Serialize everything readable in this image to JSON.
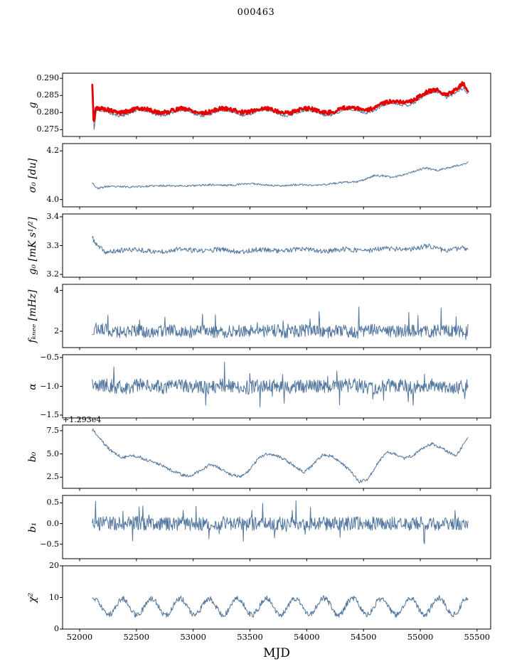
{
  "chart_data": {
    "type": "line",
    "title": "000463",
    "xlabel": "MJD",
    "xlim": [
      51850,
      55620
    ],
    "xticks": [
      52000,
      52500,
      53000,
      53500,
      54000,
      54500,
      55000,
      55500
    ],
    "xticklabels": [
      "52000",
      "52500",
      "53000",
      "53500",
      "54000",
      "54500",
      "55000",
      "55500"
    ],
    "legend": "none",
    "grid": false,
    "panels": [
      {
        "name": "g",
        "ylabel": "g",
        "ylim": [
          0.273,
          0.2915
        ],
        "yticks": [
          0.275,
          0.28,
          0.285,
          0.29
        ],
        "yticklabels": [
          "0.275",
          "0.280",
          "0.285",
          "0.290"
        ],
        "series": [
          {
            "name": "g-blue-thin",
            "color": "#53779e",
            "lw": 1.0,
            "x0": 52112,
            "x1": 55420,
            "n": 650,
            "seed": 11,
            "noise": 0.00045,
            "osc": {
              "period": 365,
              "amp": 0.0008,
              "phase": 0.5
            },
            "trend": [
              [
                52112,
                0.2868
              ],
              [
                52128,
                0.2738
              ],
              [
                52145,
                0.2798
              ],
              [
                52300,
                0.2799
              ],
              [
                52700,
                0.28
              ],
              [
                53100,
                0.2799
              ],
              [
                53500,
                0.2801
              ],
              [
                53900,
                0.2799
              ],
              [
                54300,
                0.2801
              ],
              [
                54500,
                0.2806
              ],
              [
                54700,
                0.2818
              ],
              [
                54900,
                0.283
              ],
              [
                55050,
                0.2848
              ],
              [
                55150,
                0.2856
              ],
              [
                55230,
                0.285
              ],
              [
                55320,
                0.2868
              ],
              [
                55380,
                0.287
              ],
              [
                55420,
                0.2848
              ]
            ]
          },
          {
            "name": "g-red-thick",
            "color": "#e60000",
            "lw": 2.8,
            "x0": 52112,
            "x1": 55420,
            "n": 650,
            "seed": 5,
            "noise": 0.0006,
            "osc": {
              "period": 365,
              "amp": 0.0006,
              "phase": 0.5
            },
            "trend": [
              [
                52112,
                0.2876
              ],
              [
                52124,
                0.276
              ],
              [
                52140,
                0.2806
              ],
              [
                52300,
                0.2806
              ],
              [
                52700,
                0.2806
              ],
              [
                53100,
                0.2805
              ],
              [
                53500,
                0.2807
              ],
              [
                53900,
                0.2805
              ],
              [
                54300,
                0.2807
              ],
              [
                54500,
                0.2812
              ],
              [
                54700,
                0.2824
              ],
              [
                54900,
                0.2838
              ],
              [
                55050,
                0.2854
              ],
              [
                55150,
                0.2862
              ],
              [
                55230,
                0.2856
              ],
              [
                55320,
                0.2874
              ],
              [
                55370,
                0.2886
              ],
              [
                55400,
                0.2872
              ],
              [
                55420,
                0.2862
              ]
            ]
          }
        ]
      },
      {
        "name": "sigma0",
        "ylabel": "σ₀ [du]",
        "ylim": [
          3.97,
          4.23
        ],
        "yticks": [
          4.0,
          4.2
        ],
        "yticklabels": [
          "4.0",
          "4.2"
        ],
        "series": [
          {
            "name": "sigma0",
            "color": "#53779e",
            "lw": 1.0,
            "x0": 52112,
            "x1": 55420,
            "n": 600,
            "seed": 23,
            "noise": 0.004,
            "osc": {
              "period": 365,
              "amp": 0.002,
              "phase": 2.0
            },
            "trend": [
              [
                52112,
                4.07
              ],
              [
                52150,
                4.045
              ],
              [
                52250,
                4.056
              ],
              [
                52450,
                4.05
              ],
              [
                52650,
                4.058
              ],
              [
                52850,
                4.055
              ],
              [
                53050,
                4.06
              ],
              [
                53250,
                4.058
              ],
              [
                53450,
                4.065
              ],
              [
                53650,
                4.06
              ],
              [
                53850,
                4.058
              ],
              [
                54050,
                4.06
              ],
              [
                54250,
                4.065
              ],
              [
                54450,
                4.075
              ],
              [
                54600,
                4.098
              ],
              [
                54750,
                4.092
              ],
              [
                54900,
                4.11
              ],
              [
                55050,
                4.128
              ],
              [
                55150,
                4.122
              ],
              [
                55250,
                4.132
              ],
              [
                55350,
                4.14
              ],
              [
                55420,
                4.15
              ]
            ]
          }
        ]
      },
      {
        "name": "g0",
        "ylabel": "g₀ [mK s¹/²]",
        "ylim": [
          3.19,
          3.41
        ],
        "yticks": [
          3.2,
          3.3,
          3.4
        ],
        "yticklabels": [
          "3.2",
          "3.3",
          "3.4"
        ],
        "series": [
          {
            "name": "g0",
            "color": "#53779e",
            "lw": 1.0,
            "x0": 52112,
            "x1": 55420,
            "n": 620,
            "seed": 37,
            "noise": 0.0085,
            "osc": {
              "period": 365,
              "amp": 0.003,
              "phase": 1.0
            },
            "trend": [
              [
                52112,
                3.325
              ],
              [
                52150,
                3.298
              ],
              [
                52230,
                3.276
              ],
              [
                52350,
                3.286
              ],
              [
                52600,
                3.281
              ],
              [
                53000,
                3.285
              ],
              [
                53400,
                3.282
              ],
              [
                53800,
                3.285
              ],
              [
                54200,
                3.283
              ],
              [
                54600,
                3.286
              ],
              [
                54900,
                3.289
              ],
              [
                55080,
                3.296
              ],
              [
                55200,
                3.286
              ],
              [
                55320,
                3.29
              ],
              [
                55420,
                3.288
              ]
            ]
          }
        ]
      },
      {
        "name": "fknee",
        "ylabel": "fₖₙₑₑ [mHz]",
        "ylim": [
          1.2,
          4.3
        ],
        "yticks": [
          2,
          4
        ],
        "yticklabels": [
          "2",
          "4"
        ],
        "series": [
          {
            "name": "fknee",
            "color": "#53779e",
            "lw": 1.0,
            "x0": 52112,
            "x1": 55420,
            "n": 700,
            "seed": 53,
            "noise": 0.3,
            "osc": {
              "period": 300,
              "amp": 0.05,
              "phase": 0.0
            },
            "spikes": {
              "prob": 0.035,
              "amp": 1.3,
              "dir": 1
            },
            "trend": [
              [
                52112,
                2.1
              ],
              [
                52400,
                2.0
              ],
              [
                55000,
                2.0
              ],
              [
                55420,
                2.05
              ]
            ]
          }
        ]
      },
      {
        "name": "alpha",
        "ylabel": "α",
        "ylim": [
          -1.55,
          -0.45
        ],
        "yticks": [
          -1.5,
          -1.0,
          -0.5
        ],
        "yticklabels": [
          "−1.5",
          "−1.0",
          "−0.5"
        ],
        "series": [
          {
            "name": "alpha",
            "color": "#53779e",
            "lw": 1.0,
            "x0": 52112,
            "x1": 55420,
            "n": 700,
            "seed": 67,
            "noise": 0.12,
            "osc": {
              "period": 365,
              "amp": 0.02,
              "phase": 0.0
            },
            "spikes": {
              "prob": 0.04,
              "amp": 0.35,
              "dir": 0
            },
            "trend": [
              [
                52112,
                -1.0
              ],
              [
                55420,
                -1.0
              ]
            ]
          }
        ]
      },
      {
        "name": "b0",
        "ylabel": "b₀",
        "offset_text": "+1.293e4",
        "ylim": [
          1.3,
          8.1
        ],
        "yticks": [
          2.5,
          5.0,
          7.5
        ],
        "yticklabels": [
          "2.5",
          "5.0",
          "7.5"
        ],
        "series": [
          {
            "name": "b0",
            "color": "#53779e",
            "lw": 1.0,
            "x0": 52112,
            "x1": 55420,
            "n": 620,
            "seed": 79,
            "noise": 0.16,
            "trend": [
              [
                52112,
                7.6
              ],
              [
                52160,
                7.0
              ],
              [
                52220,
                6.0
              ],
              [
                52300,
                5.1
              ],
              [
                52380,
                4.6
              ],
              [
                52450,
                4.85
              ],
              [
                52520,
                4.7
              ],
              [
                52600,
                4.3
              ],
              [
                52700,
                3.9
              ],
              [
                52800,
                3.3
              ],
              [
                52900,
                2.75
              ],
              [
                52980,
                2.6
              ],
              [
                53060,
                3.2
              ],
              [
                53150,
                3.85
              ],
              [
                53230,
                3.5
              ],
              [
                53320,
                2.8
              ],
              [
                53420,
                2.55
              ],
              [
                53500,
                3.3
              ],
              [
                53580,
                4.6
              ],
              [
                53660,
                5.05
              ],
              [
                53740,
                4.8
              ],
              [
                53820,
                4.3
              ],
              [
                53900,
                3.6
              ],
              [
                53980,
                3.0
              ],
              [
                54060,
                3.9
              ],
              [
                54140,
                4.9
              ],
              [
                54220,
                4.75
              ],
              [
                54300,
                4.1
              ],
              [
                54380,
                3.2
              ],
              [
                54460,
                2.0
              ],
              [
                54540,
                2.3
              ],
              [
                54620,
                3.9
              ],
              [
                54700,
                5.2
              ],
              [
                54780,
                5.0
              ],
              [
                54860,
                4.5
              ],
              [
                54940,
                4.85
              ],
              [
                55020,
                5.6
              ],
              [
                55100,
                6.1
              ],
              [
                55180,
                5.7
              ],
              [
                55260,
                5.1
              ],
              [
                55320,
                4.8
              ],
              [
                55360,
                5.6
              ],
              [
                55420,
                6.8
              ]
            ]
          }
        ]
      },
      {
        "name": "b1",
        "ylabel": "b₁",
        "ylim": [
          -0.85,
          0.68
        ],
        "yticks": [
          -0.5,
          0.0,
          0.5
        ],
        "yticklabels": [
          "−0.5",
          "0.0",
          "0.5"
        ],
        "series": [
          {
            "name": "b1",
            "color": "#53779e",
            "lw": 1.0,
            "x0": 52112,
            "x1": 55420,
            "n": 700,
            "seed": 97,
            "noise": 0.17,
            "spikes": {
              "prob": 0.05,
              "amp": 0.45,
              "dir": 0
            },
            "trend": [
              [
                52112,
                0.0
              ],
              [
                55420,
                0.0
              ]
            ]
          }
        ]
      },
      {
        "name": "chi2",
        "ylabel": "χ²",
        "ylim": [
          0,
          20
        ],
        "yticks": [
          0,
          10,
          20
        ],
        "yticklabels": [
          "0",
          "10",
          "20"
        ],
        "series": [
          {
            "name": "chi2",
            "color": "#53779e",
            "lw": 1.0,
            "x0": 52112,
            "x1": 55420,
            "n": 700,
            "seed": 113,
            "noise": 0.9,
            "osc": {
              "period": 253,
              "amp": 2.6,
              "phase": 1.2
            },
            "trend": [
              [
                52112,
                7.0
              ],
              [
                55420,
                7.2
              ]
            ]
          }
        ]
      }
    ]
  }
}
